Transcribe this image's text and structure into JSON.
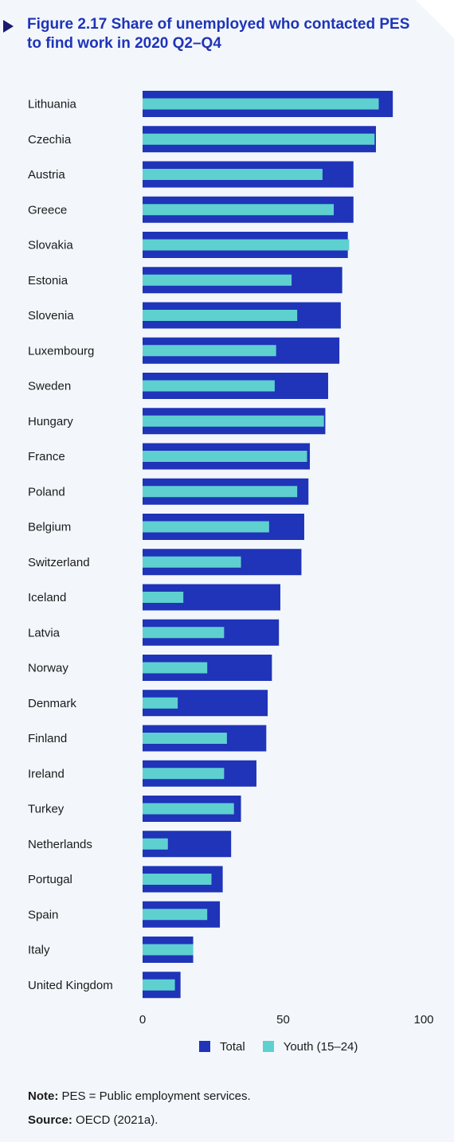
{
  "figure": {
    "title": "Figure 2.17  Share of unemployed who contacted PES to find work in 2020 Q2–Q4"
  },
  "chart_data": {
    "type": "bar",
    "orientation": "horizontal",
    "title": "Figure 2.17  Share of unemployed who contacted PES to find work in 2020 Q2–Q4",
    "xlabel": "",
    "ylabel": "",
    "xlim": [
      0,
      100
    ],
    "xticks": [
      "0",
      "50",
      "100"
    ],
    "grid": false,
    "legend_position": "bottom",
    "categories": [
      "Lithuania",
      "Czechia",
      "Austria",
      "Greece",
      "Slovakia",
      "Estonia",
      "Slovenia",
      "Luxembourg",
      "Sweden",
      "Hungary",
      "France",
      "Poland",
      "Belgium",
      "Switzerland",
      "Iceland",
      "Latvia",
      "Norway",
      "Denmark",
      "Finland",
      "Ireland",
      "Turkey",
      "Netherlands",
      "Portugal",
      "Spain",
      "Italy",
      "United Kingdom"
    ],
    "series": [
      {
        "name": "Total",
        "color": "#1f34b8",
        "values": [
          89,
          83,
          75,
          75,
          73,
          71,
          70.5,
          70,
          66,
          65,
          59.5,
          59,
          57.5,
          56.5,
          49,
          48.5,
          46,
          44.5,
          44,
          40.5,
          35,
          31.5,
          28.5,
          27.5,
          18,
          13.5
        ]
      },
      {
        "name": "Youth (15–24)",
        "color": "#5fd0d0",
        "values": [
          84,
          82.5,
          64,
          68,
          73.5,
          53,
          55,
          47.5,
          47,
          64.5,
          58.5,
          55,
          45,
          35,
          14.5,
          29,
          23,
          12.5,
          30,
          29,
          32.5,
          9,
          24.5,
          23,
          18,
          11.5
        ]
      }
    ]
  },
  "notes": {
    "note_label": "Note:",
    "note_text": " PES = Public employment services.",
    "source_label": "Source:",
    "source_text": " OECD (2021a)."
  }
}
